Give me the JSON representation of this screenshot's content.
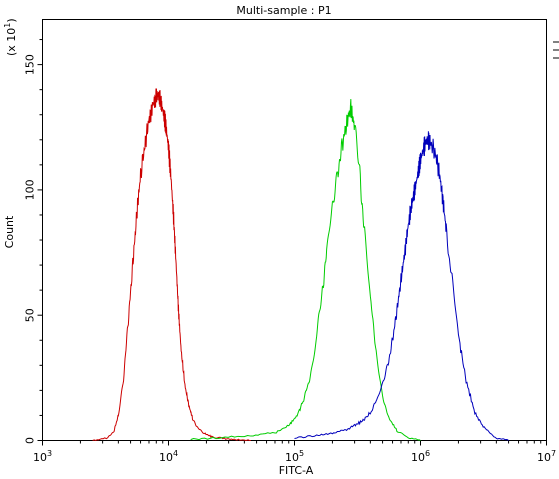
{
  "chart_data": {
    "type": "line",
    "title": "Multi-sample : P1",
    "xlabel": "FITC-A",
    "ylabel": "Count",
    "y_multiplier": "(x 10",
    "y_multiplier_exp": "1",
    "y_multiplier_close": ")",
    "x_scale": "log",
    "xlim": [
      1000,
      10000000
    ],
    "ylim": [
      0,
      168
    ],
    "x_ticks": [
      {
        "value": 1000,
        "base": "10",
        "exp": "3"
      },
      {
        "value": 10000,
        "base": "10",
        "exp": "4"
      },
      {
        "value": 100000,
        "base": "10",
        "exp": "5"
      },
      {
        "value": 1000000,
        "base": "10",
        "exp": "6"
      },
      {
        "value": 10000000,
        "base": "10",
        "exp": "7"
      }
    ],
    "y_ticks": [
      {
        "value": 0,
        "label": "0"
      },
      {
        "value": 50,
        "label": "50"
      },
      {
        "value": 100,
        "label": "100"
      },
      {
        "value": 150,
        "label": "150"
      }
    ],
    "grid": false,
    "legend": "top-right (clipped)",
    "series": [
      {
        "color": "#cc0000",
        "x": [
          2500,
          3300,
          3700,
          4000,
          4400,
          4800,
          5200,
          5600,
          6000,
          6500,
          7000,
          7500,
          8000,
          8300,
          8600,
          9000,
          9500,
          10000,
          10500,
          11000,
          11500,
          12000,
          12600,
          13500,
          14500,
          15500,
          17000,
          19000,
          22000,
          27000,
          35000,
          45000
        ],
        "y": [
          0,
          1,
          4,
          10,
          25,
          48,
          70,
          90,
          106,
          118,
          128,
          134,
          137,
          138,
          136,
          132,
          126,
          117,
          104,
          88,
          70,
          52,
          36,
          22,
          14,
          9,
          5,
          3,
          1.5,
          0.8,
          0.3,
          0
        ]
      },
      {
        "color": "#00cc00",
        "x": [
          15000,
          25000,
          45000,
          70000,
          90000,
          105000,
          120000,
          135000,
          150000,
          165000,
          180000,
          200000,
          220000,
          240000,
          260000,
          280000,
          300000,
          330000,
          360000,
          400000,
          450000,
          500000,
          560000,
          650000,
          800000,
          1000000
        ],
        "y": [
          0.5,
          1,
          2,
          3,
          6,
          10,
          17,
          27,
          42,
          58,
          75,
          92,
          107,
          118,
          127,
          133,
          125,
          106,
          82,
          56,
          34,
          18,
          9,
          4,
          1,
          0
        ]
      },
      {
        "color": "#0000bb",
        "x": [
          100000,
          150000,
          200000,
          250000,
          300000,
          350000,
          400000,
          450000,
          500000,
          550000,
          600000,
          650000,
          700000,
          750000,
          800000,
          850000,
          900000,
          950000,
          1000000,
          1050000,
          1100000,
          1150000,
          1200000,
          1300000,
          1400000,
          1500000,
          1600000,
          1800000,
          2000000,
          2300000,
          2700000,
          3200000,
          4000000,
          5000000
        ],
        "y": [
          1,
          2,
          3,
          4,
          6,
          8,
          11,
          16,
          22,
          30,
          40,
          52,
          64,
          75,
          86,
          94,
          100,
          106,
          112,
          116,
          119,
          120,
          119,
          115,
          108,
          97,
          84,
          62,
          42,
          24,
          11,
          5,
          1,
          0
        ]
      }
    ]
  }
}
